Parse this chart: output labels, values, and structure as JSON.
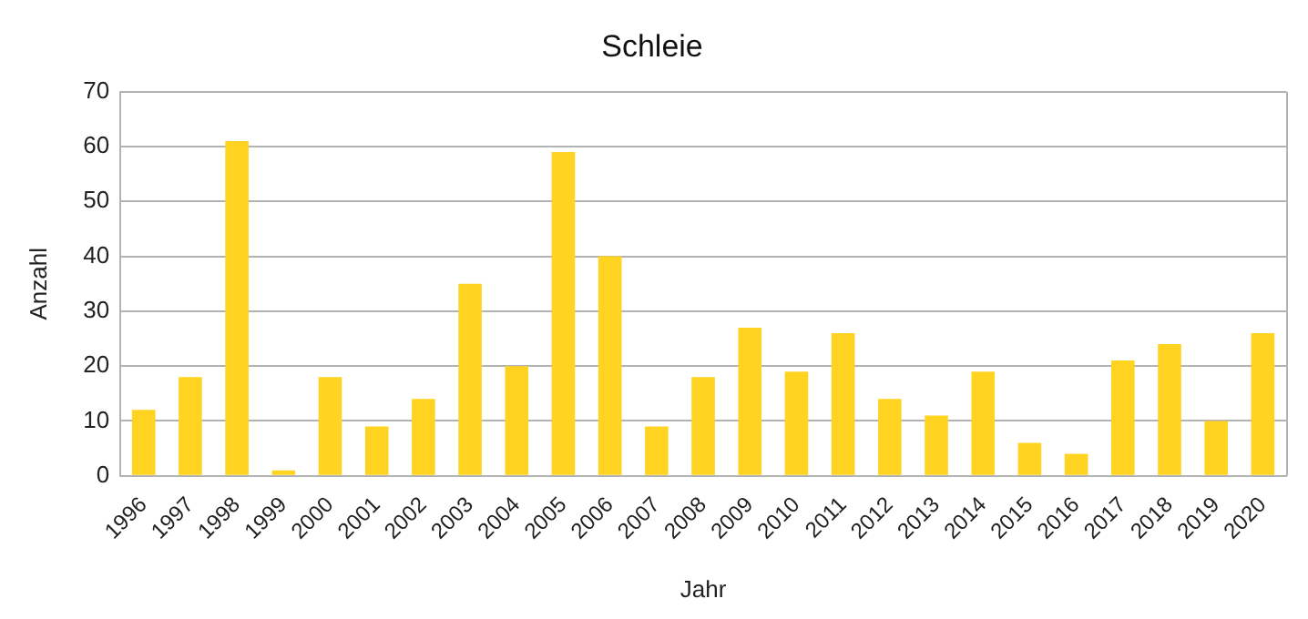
{
  "chart_data": {
    "type": "bar",
    "title": "Schleie",
    "xlabel": "Jahr",
    "ylabel": "Anzahl",
    "categories": [
      "1996",
      "1997",
      "1998",
      "1999",
      "2000",
      "2001",
      "2002",
      "2003",
      "2004",
      "2005",
      "2006",
      "2007",
      "2008",
      "2009",
      "2010",
      "2011",
      "2012",
      "2013",
      "2014",
      "2015",
      "2016",
      "2017",
      "2018",
      "2019",
      "2020"
    ],
    "values": [
      12,
      18,
      61,
      1,
      18,
      9,
      14,
      35,
      20,
      59,
      40,
      9,
      18,
      27,
      19,
      26,
      14,
      11,
      19,
      6,
      4,
      21,
      24,
      10,
      26
    ],
    "color": "#ffd320",
    "ylim": [
      0,
      70
    ],
    "yticks": [
      0,
      10,
      20,
      30,
      40,
      50,
      60,
      70
    ],
    "grid": "y",
    "legend": false
  }
}
